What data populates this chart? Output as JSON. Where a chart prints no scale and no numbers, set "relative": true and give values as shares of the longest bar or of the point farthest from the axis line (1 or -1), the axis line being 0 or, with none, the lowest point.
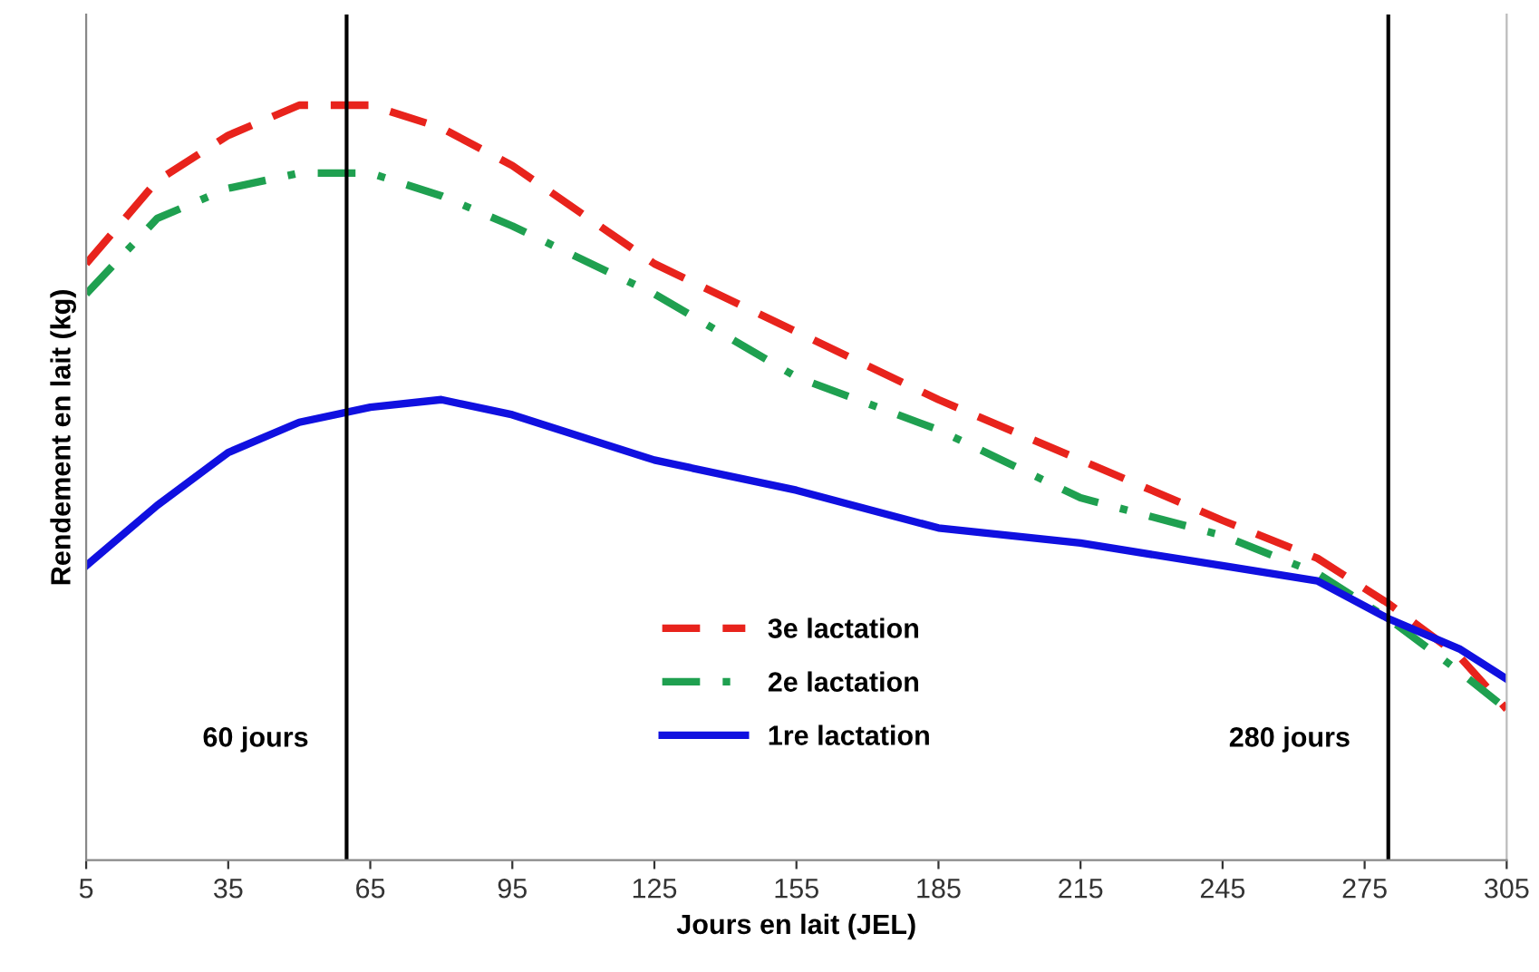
{
  "chart_data": {
    "type": "line",
    "relative": true,
    "xlabel": "Jours en lait (JEL)",
    "ylabel": "Rendement en lait (kg)",
    "x": [
      5,
      20,
      35,
      50,
      65,
      80,
      95,
      125,
      155,
      185,
      215,
      245,
      265,
      280,
      295,
      305
    ],
    "xlim": [
      5,
      305
    ],
    "xticks": [
      5,
      35,
      65,
      95,
      125,
      155,
      185,
      215,
      245,
      275,
      305
    ],
    "series": [
      {
        "name": "3e lactation",
        "color": "#e8231c",
        "line_style": "dashed",
        "values": [
          0.79,
          0.9,
          0.96,
          1.0,
          1.0,
          0.97,
          0.92,
          0.79,
          0.7,
          0.61,
          0.53,
          0.45,
          0.4,
          0.34,
          0.27,
          0.2
        ]
      },
      {
        "name": "2e lactation",
        "color": "#1fa050",
        "line_style": "dashdot",
        "values": [
          0.75,
          0.85,
          0.89,
          0.91,
          0.91,
          0.88,
          0.84,
          0.75,
          0.64,
          0.57,
          0.48,
          0.43,
          0.38,
          0.32,
          0.25,
          0.2
        ]
      },
      {
        "name": "1re lactation",
        "color": "#1010e0",
        "line_style": "solid",
        "values": [
          0.39,
          0.47,
          0.54,
          0.58,
          0.6,
          0.61,
          0.59,
          0.53,
          0.49,
          0.44,
          0.42,
          0.39,
          0.37,
          0.32,
          0.28,
          0.24
        ]
      }
    ],
    "ref_lines": [
      {
        "axis": "x",
        "value": 60,
        "label": "60 jours",
        "color": "#000000"
      },
      {
        "axis": "x",
        "value": 280,
        "label": "280 jours",
        "color": "#000000"
      }
    ],
    "legend": "bottom",
    "grid": false,
    "marker": "none"
  }
}
